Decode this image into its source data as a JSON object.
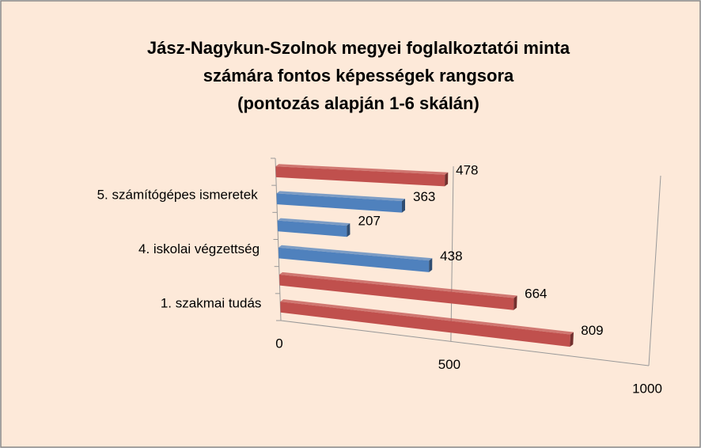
{
  "chart_data": {
    "type": "bar3d",
    "orientation": "horizontal",
    "title": [
      "Jász-Nagykun-Szolnok megyei foglalkoztatói minta",
      "számára fontos képességek rangsora",
      "(pontozás alapján 1-6 skálán)"
    ],
    "categories": [
      "1. szakmai tudás",
      null,
      "4. iskolai végzettség",
      null,
      "5. számítógépes ismeretek",
      null
    ],
    "values": [
      809,
      664,
      438,
      207,
      363,
      478
    ],
    "colors": [
      "#c0504d",
      "#c0504d",
      "#4f81bd",
      "#4f81bd",
      "#4f81bd",
      "#c0504d"
    ],
    "xlim": [
      0,
      1000
    ],
    "xticks": [
      0,
      500,
      1000
    ],
    "grid": true
  }
}
